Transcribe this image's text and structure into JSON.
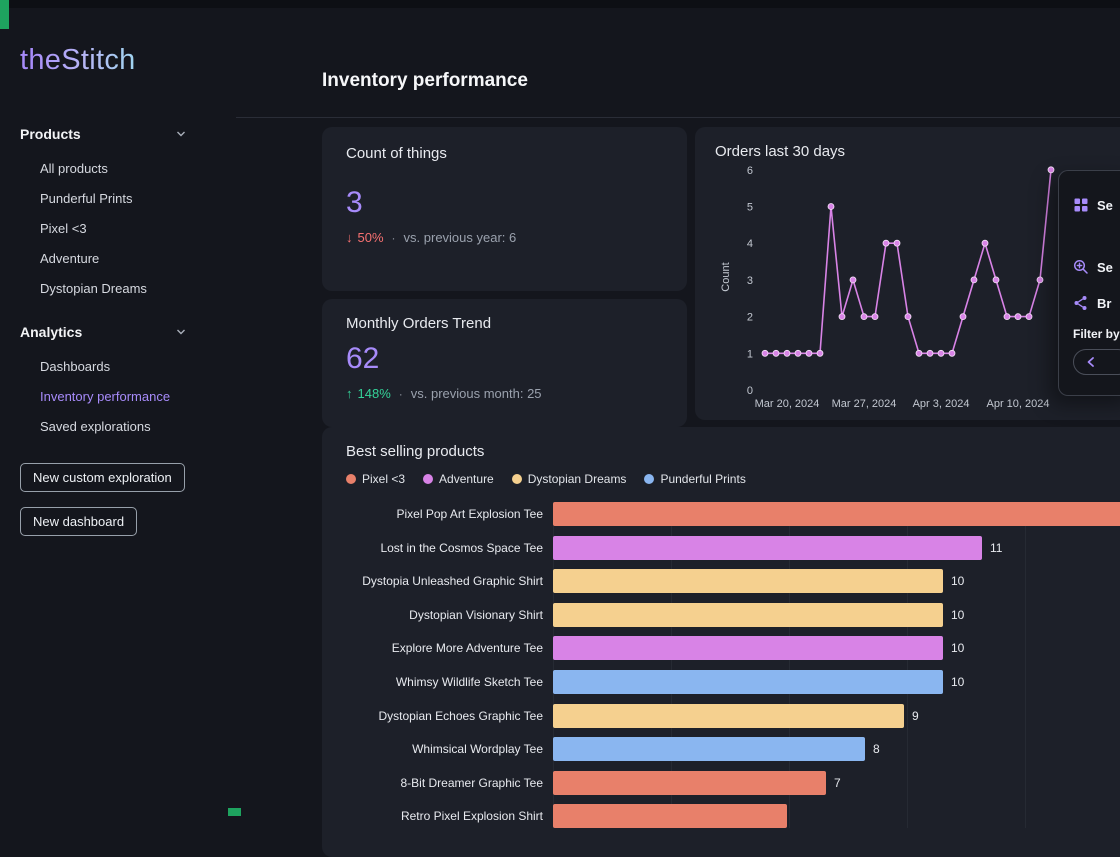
{
  "ui": {
    "dot_separator": "·",
    "accent": "#a78bfa",
    "negative_color": "#f87171",
    "positive_color": "#34d399",
    "line_color": "#d883e6"
  },
  "sidebar": {
    "logo": "theStitch",
    "sections": [
      {
        "label": "Products",
        "items": [
          {
            "label": "All products"
          },
          {
            "label": "Punderful Prints"
          },
          {
            "label": "Pixel <3"
          },
          {
            "label": "Adventure"
          },
          {
            "label": "Dystopian Dreams"
          }
        ]
      },
      {
        "label": "Analytics",
        "items": [
          {
            "label": "Dashboards"
          },
          {
            "label": "Inventory performance",
            "active": true
          },
          {
            "label": "Saved explorations"
          }
        ]
      }
    ],
    "buttons": [
      {
        "label": "New custom exploration"
      },
      {
        "label": "New dashboard"
      }
    ]
  },
  "header": {
    "title": "Inventory performance"
  },
  "metrics": [
    {
      "title": "Count of things",
      "value": "3",
      "delta": "50%",
      "direction": "down",
      "comparison": "vs. previous year: 6"
    },
    {
      "title": "Monthly Orders Trend",
      "value": "62",
      "delta": "148%",
      "direction": "up",
      "comparison": "vs. previous month: 25"
    }
  ],
  "chart_data": [
    {
      "type": "line",
      "title": "Orders last 30 days",
      "ylabel": "Count",
      "ylim": [
        0,
        6
      ],
      "yticks": [
        0,
        1,
        2,
        3,
        4,
        5,
        6
      ],
      "values": [
        1,
        1,
        1,
        1,
        1,
        1,
        5,
        2,
        3,
        2,
        2,
        4,
        4,
        2,
        1,
        1,
        1,
        1,
        2,
        3,
        4,
        3,
        2,
        2,
        2,
        3,
        6
      ],
      "tick_indices": [
        2,
        9,
        16,
        23
      ],
      "tick_labels": [
        "Mar 20, 2024",
        "Mar 27, 2024",
        "Apr 3, 2024",
        "Apr 10, 2024"
      ],
      "grid": false,
      "legend_position": "none"
    },
    {
      "type": "bar",
      "title": "Best selling products",
      "orientation": "horizontal",
      "xlim": [
        0,
        16
      ],
      "legend": [
        {
          "name": "Pixel <3",
          "color": "#e8806a"
        },
        {
          "name": "Adventure",
          "color": "#d883e6"
        },
        {
          "name": "Dystopian Dreams",
          "color": "#f5d08f"
        },
        {
          "name": "Punderful Prints",
          "color": "#8ab6f0"
        }
      ],
      "bars": [
        {
          "label": "Pixel Pop Art Explosion Tee",
          "series": "Pixel <3",
          "value": 16,
          "value_label": ""
        },
        {
          "label": "Lost in the Cosmos Space Tee",
          "series": "Adventure",
          "value": 11,
          "value_label": "11"
        },
        {
          "label": "Dystopia Unleashed Graphic Shirt",
          "series": "Dystopian Dreams",
          "value": 10,
          "value_label": "10"
        },
        {
          "label": "Dystopian Visionary Shirt",
          "series": "Dystopian Dreams",
          "value": 10,
          "value_label": "10"
        },
        {
          "label": "Explore More Adventure Tee",
          "series": "Adventure",
          "value": 10,
          "value_label": "10"
        },
        {
          "label": "Whimsy Wildlife Sketch Tee",
          "series": "Punderful Prints",
          "value": 10,
          "value_label": "10"
        },
        {
          "label": "Dystopian Echoes Graphic Tee",
          "series": "Dystopian Dreams",
          "value": 9,
          "value_label": "9"
        },
        {
          "label": "Whimsical Wordplay Tee",
          "series": "Punderful Prints",
          "value": 8,
          "value_label": "8"
        },
        {
          "label": "8-Bit Dreamer Graphic Tee",
          "series": "Pixel <3",
          "value": 7,
          "value_label": "7"
        },
        {
          "label": "Retro Pixel Explosion Shirt",
          "series": "Pixel <3",
          "value": 6,
          "value_label": ""
        }
      ]
    }
  ],
  "side_panel": {
    "items": [
      {
        "icon": "grid-icon",
        "label": "Se"
      },
      {
        "icon": "zoom-in-icon",
        "label": "Se"
      },
      {
        "icon": "share-icon",
        "label": "Br"
      }
    ],
    "filter_label": "Filter by"
  }
}
